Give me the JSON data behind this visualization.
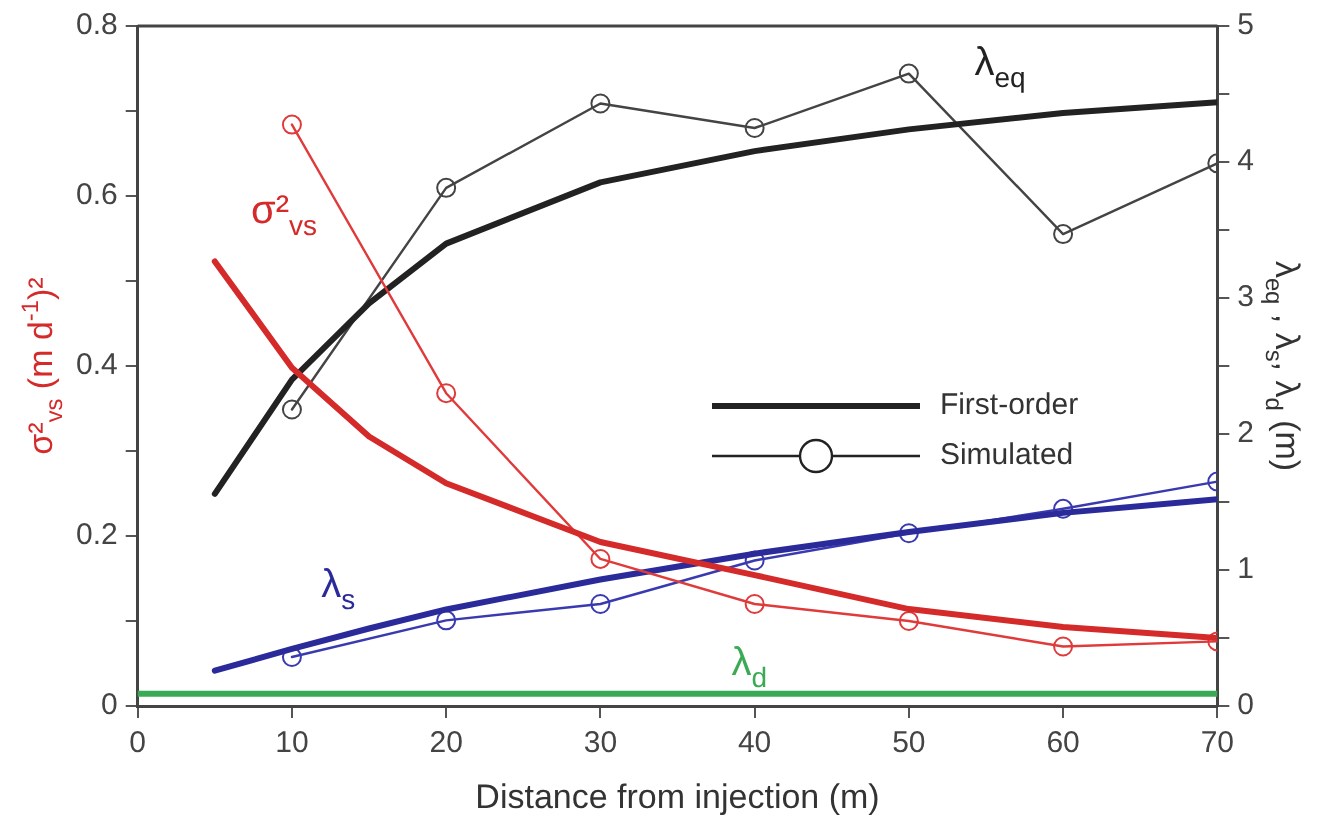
{
  "chart_data": {
    "type": "line",
    "xlabel": "Distance from injection (m)",
    "ylabel": "σ²$_{vs}$ (m d$^{-1}$)²",
    "y2label": "λ$_{eq}$ , λ$_{s}$, λ$_{d}$ (m)",
    "annotations": [
      "First-order",
      "Simulated"
    ],
    "xlim": [
      0,
      70
    ],
    "xticks": [
      0,
      10,
      20,
      30,
      40,
      50,
      60,
      70
    ],
    "ylim": [
      0,
      0.8
    ],
    "yticks": [
      0,
      {
        "value": 0.1,
        "label": null
      },
      0.2,
      {
        "value": 0.3,
        "label": null
      },
      0.4,
      {
        "value": 0.5,
        "label": null
      },
      0.6,
      {
        "value": 0.7,
        "label": null
      },
      0.8
    ],
    "y2lim": [
      0,
      5
    ],
    "y2ticks": [
      0,
      {
        "value": 0.5,
        "label": null
      },
      1,
      {
        "value": 1.5,
        "label": null
      },
      2,
      {
        "value": 2.5,
        "label": null
      },
      3,
      {
        "value": 3.5,
        "label": null
      },
      4,
      {
        "value": 4.5,
        "label": null
      },
      5
    ],
    "series": [
      {
        "name": "σ²$_{vs}$",
        "color": "#d42a2a",
        "marker": "none",
        "x": [
          5,
          10,
          15,
          20,
          30,
          40,
          50,
          60,
          70
        ],
        "values": [
          0.523,
          0.398,
          0.317,
          0.262,
          0.193,
          0.154,
          0.114,
          0.093,
          0.08
        ]
      },
      {
        "color": "#e03a3a",
        "marker": "circle",
        "x": [
          10,
          20,
          30,
          40,
          50,
          60,
          70
        ],
        "values": [
          0.684,
          0.368,
          0.173,
          0.12,
          0.1,
          0.07,
          0.076
        ]
      },
      {
        "name": "λ$_{eq}$",
        "color": "#222222",
        "axis": "y2",
        "marker": "none",
        "x": [
          5,
          10,
          15,
          20,
          30,
          40,
          50,
          60,
          70
        ],
        "values": [
          1.56,
          2.4,
          2.96,
          3.4,
          3.85,
          4.08,
          4.24,
          4.36,
          4.44
        ]
      },
      {
        "color": "#444444",
        "axis": "y2",
        "marker": "circle",
        "x": [
          10,
          20,
          30,
          40,
          50,
          60,
          70
        ],
        "values": [
          2.18,
          3.81,
          4.43,
          4.25,
          4.65,
          3.47,
          3.99
        ]
      },
      {
        "name": "λ$_{s}$",
        "color": "#2a2a9a",
        "axis": "y2",
        "marker": "none",
        "x": [
          5,
          10,
          15,
          20,
          30,
          40,
          50,
          60,
          70
        ],
        "values": [
          0.26,
          0.42,
          0.57,
          0.71,
          0.93,
          1.12,
          1.28,
          1.42,
          1.52
        ]
      },
      {
        "color": "#3a3ab0",
        "axis": "y2",
        "marker": "circle",
        "x": [
          10,
          20,
          30,
          40,
          50,
          60,
          70
        ],
        "values": [
          0.36,
          0.63,
          0.75,
          1.07,
          1.27,
          1.45,
          1.65
        ]
      },
      {
        "name": "λ$_{d}$",
        "color": "#3aaa55",
        "axis": "y2",
        "marker": "none",
        "x": [
          0,
          70
        ],
        "values": [
          0.09,
          0.09
        ]
      }
    ]
  }
}
